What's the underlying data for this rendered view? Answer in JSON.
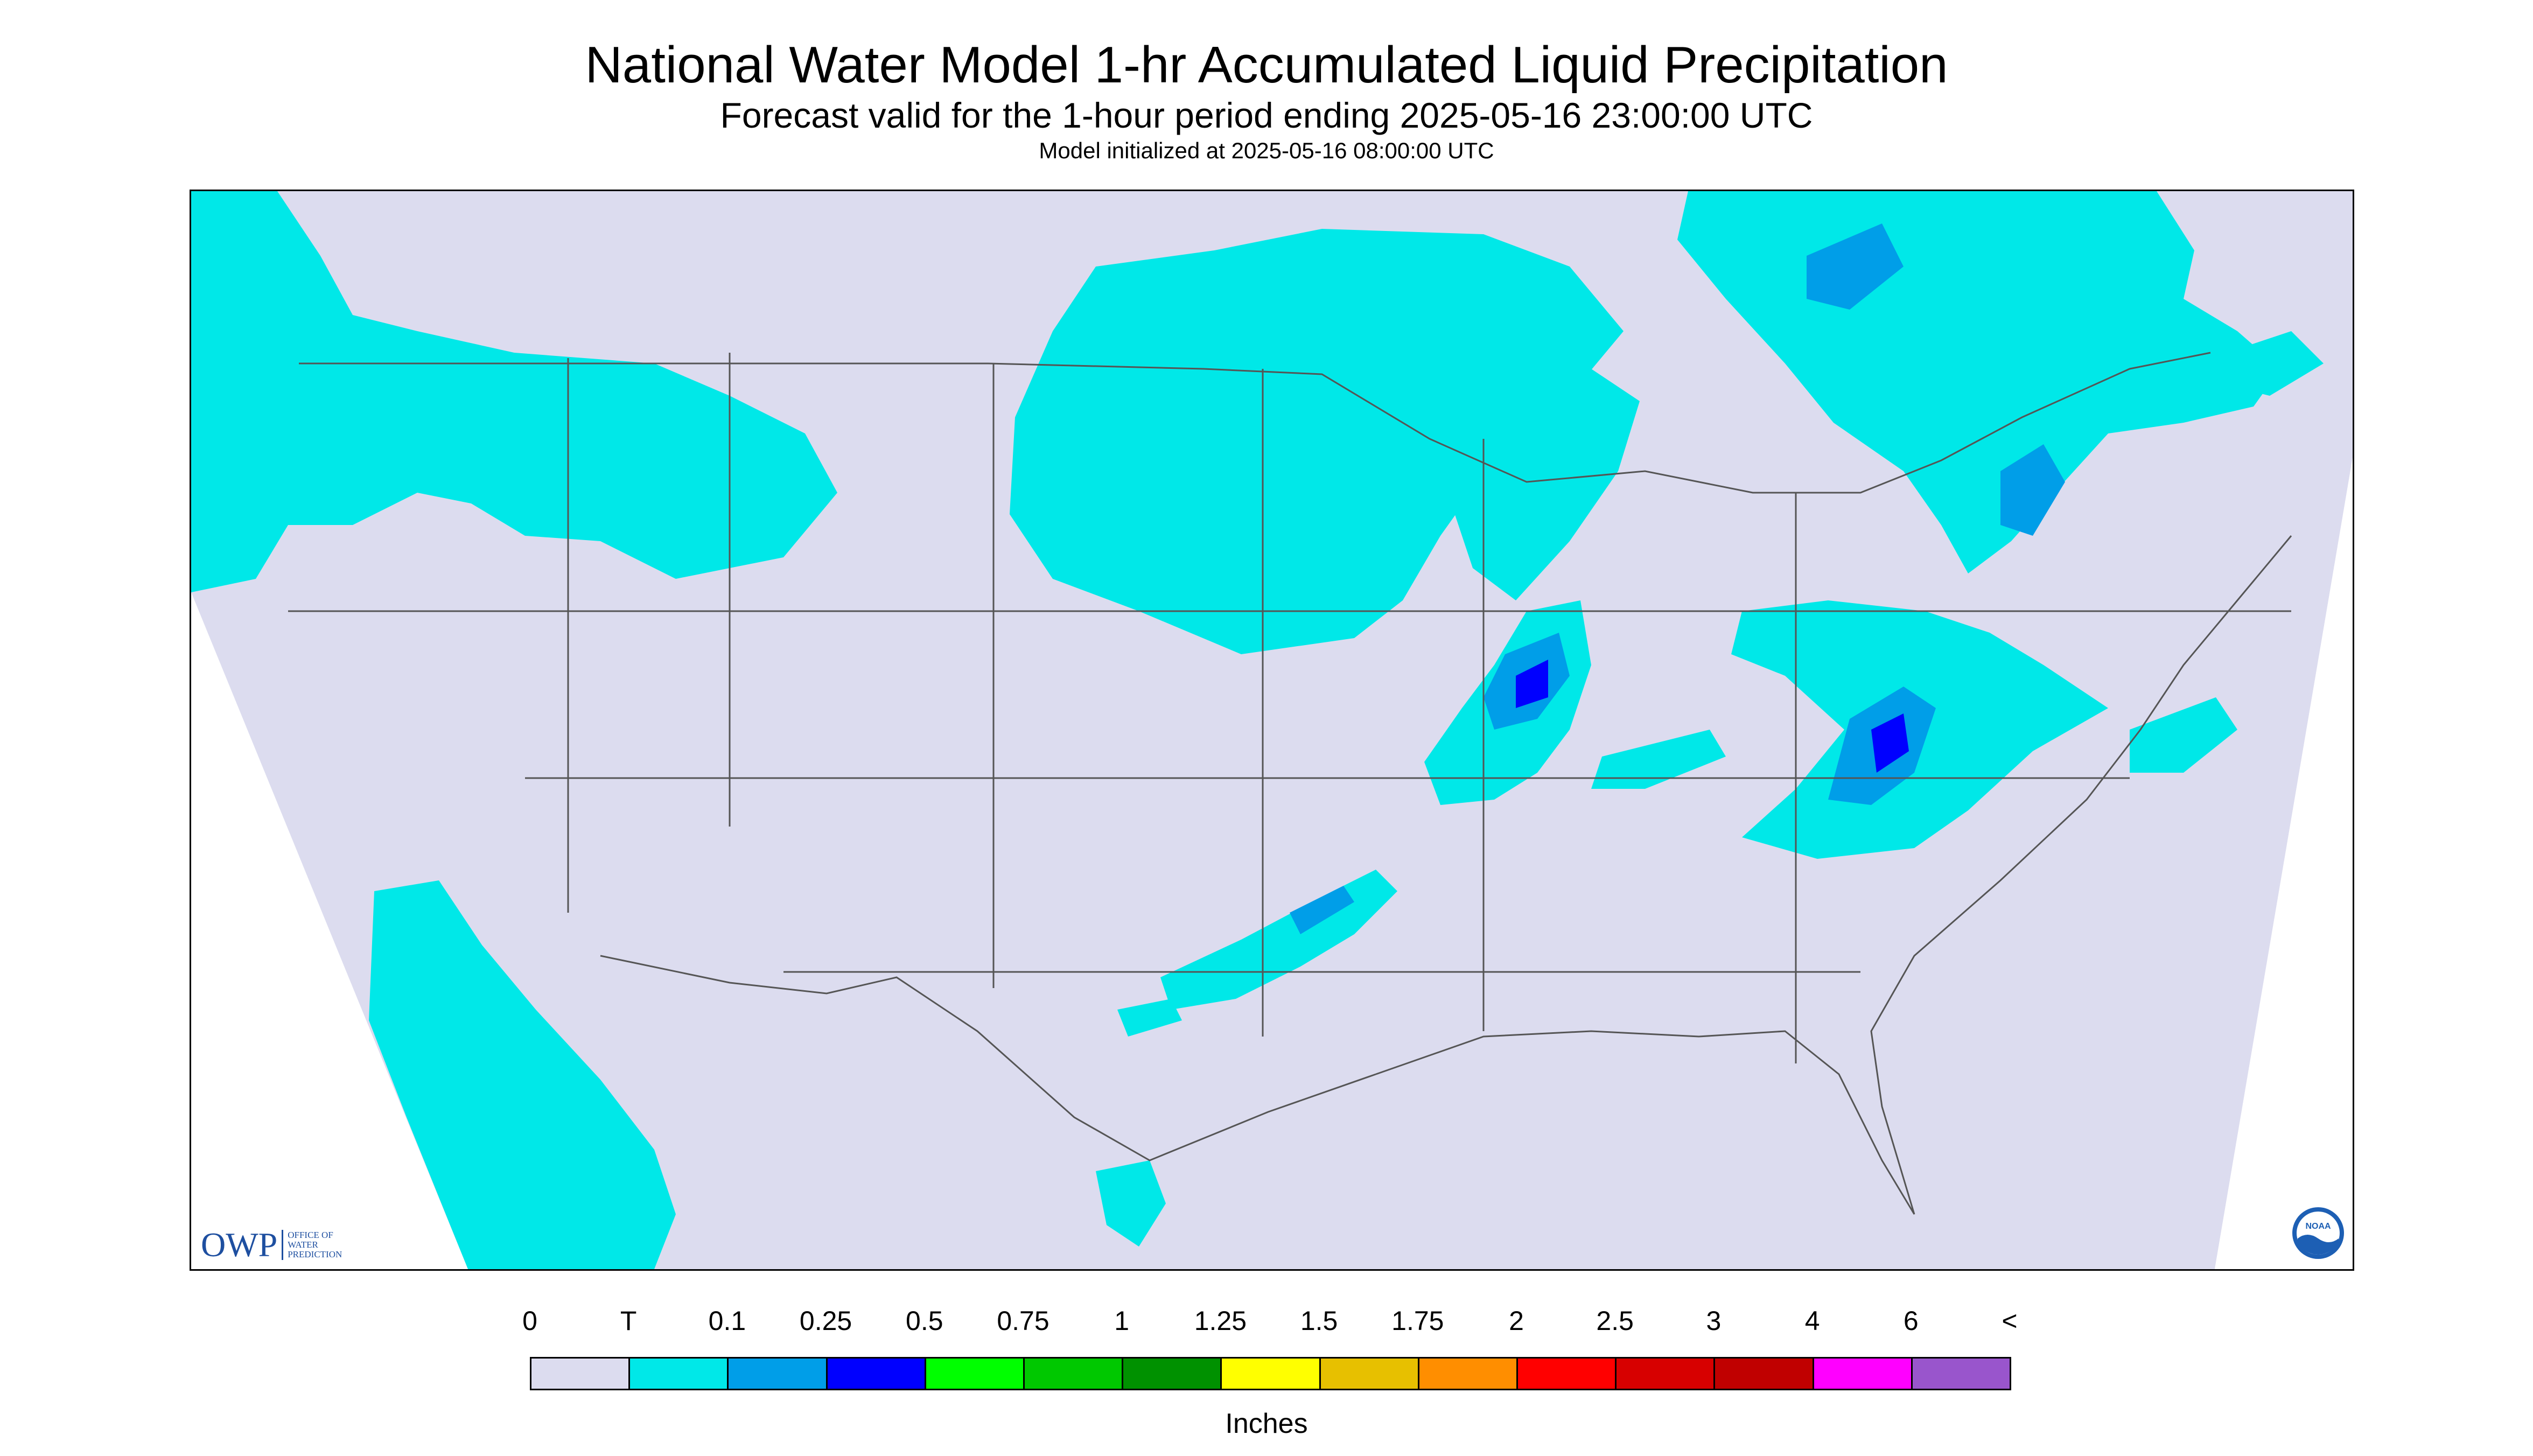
{
  "title": "National Water Model 1-hr Accumulated Liquid Precipitation",
  "subtitle": "Forecast valid for the 1-hour period ending 2025-05-16 23:00:00 UTC",
  "init_line": "Model initialized at 2025-05-16 08:00:00 UTC",
  "logos": {
    "owp": "OWP",
    "owp_sub": [
      "OFFICE OF",
      "WATER",
      "PREDICTION"
    ],
    "noaa": "NOAA"
  },
  "legend": {
    "units": "Inches",
    "ticks": [
      "0",
      "T",
      "0.1",
      "0.25",
      "0.5",
      "0.75",
      "1",
      "1.25",
      "1.5",
      "1.75",
      "2",
      "2.5",
      "3",
      "4",
      "6",
      "<"
    ],
    "colors": [
      "#dcdcef",
      "#00e8e8",
      "#009ee8",
      "#0000ff",
      "#00ff00",
      "#00c800",
      "#009100",
      "#ffff00",
      "#e7c000",
      "#ff8e00",
      "#ff0000",
      "#d70000",
      "#c00000",
      "#ff00ff",
      "#9955cc"
    ]
  },
  "colors": {
    "no_precip": "#dcdcef",
    "trace": "#00e8e8",
    "light": "#009ee8",
    "moderate": "#0000ff",
    "outside_domain": "#ffffff",
    "boundaries": "#555555"
  }
}
